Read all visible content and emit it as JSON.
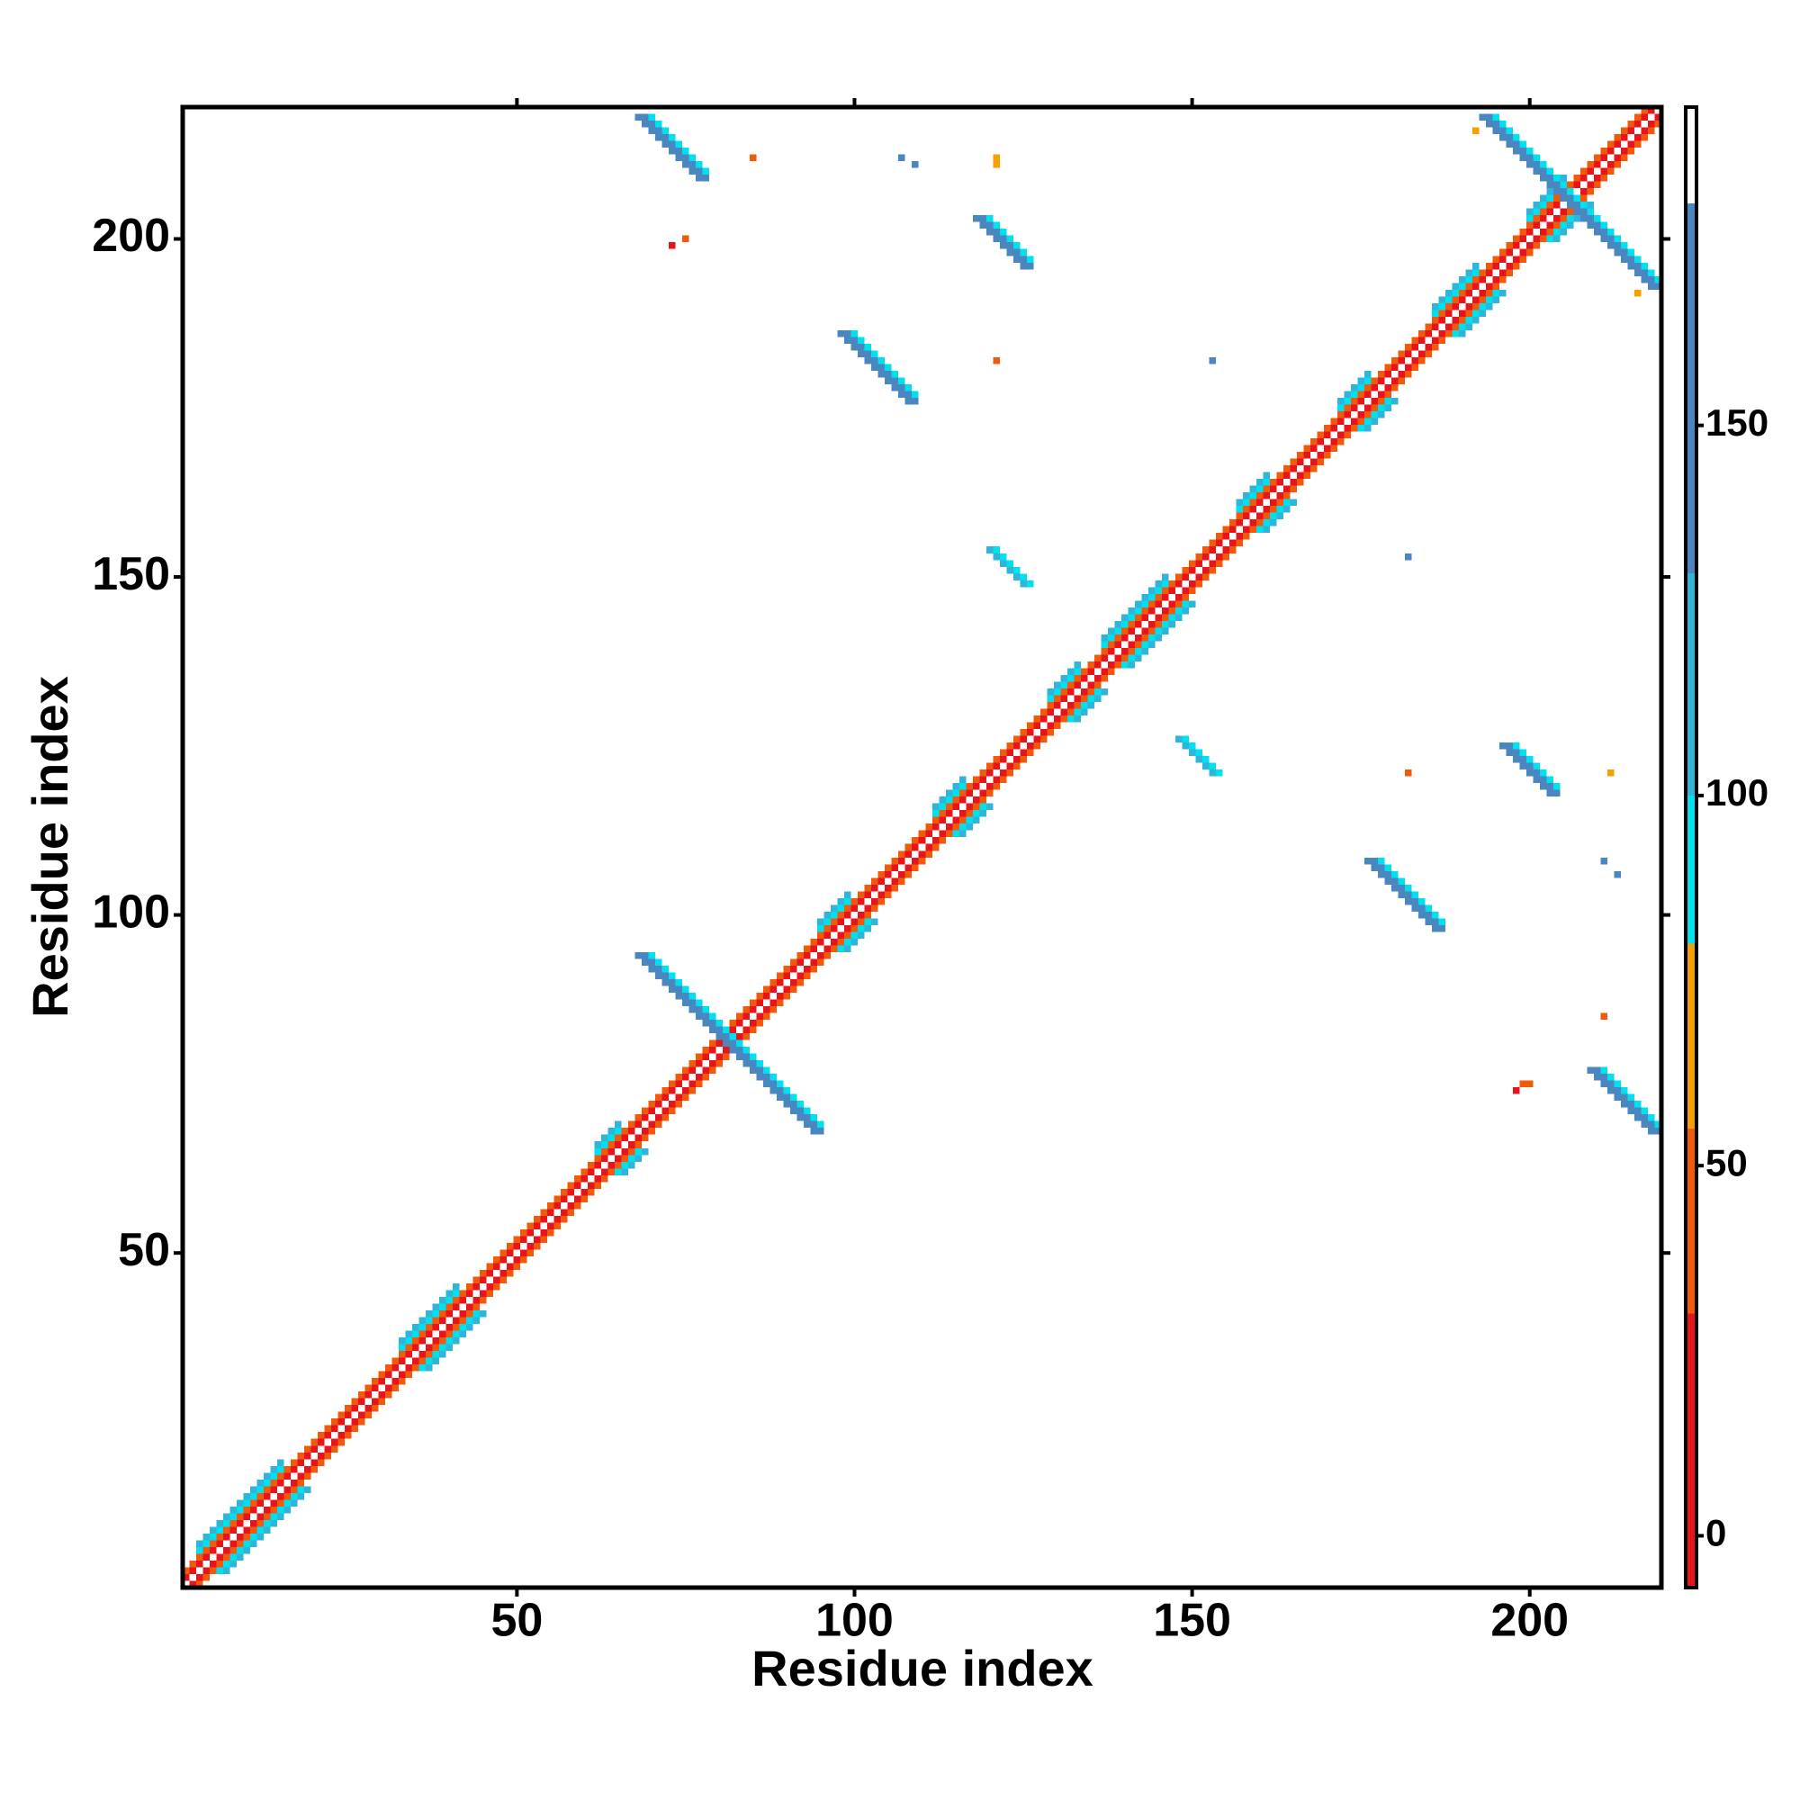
{
  "chart_data": {
    "type": "heatmap",
    "xlabel": "Residue index",
    "ylabel": "Residue index",
    "xlim": [
      0.5,
      219.5
    ],
    "ylim": [
      0.5,
      219.5
    ],
    "xticks": [
      50,
      100,
      150,
      200
    ],
    "yticks": [
      50,
      100,
      150,
      200
    ],
    "colorbar": {
      "clim": [
        -7,
        193
      ],
      "ticks": [
        0,
        50,
        100,
        150
      ],
      "bins": [
        -7,
        30,
        55,
        80,
        100,
        130,
        180,
        193
      ],
      "colors": [
        "#e8141c",
        "#f05a0a",
        "#f5a000",
        "#00e1f0",
        "#30b4d8",
        "#4a86c0",
        "#ffffff"
      ]
    },
    "segments": [
      [
        1,
        2,
        1,
        1,
        218,
        12
      ],
      [
        2,
        1,
        1,
        1,
        218,
        12
      ],
      [
        1,
        3,
        1,
        1,
        217,
        45
      ],
      [
        3,
        1,
        1,
        1,
        217,
        45
      ],
      [
        3,
        6,
        1,
        1,
        13,
        90
      ],
      [
        6,
        3,
        1,
        1,
        13,
        90
      ],
      [
        3,
        7,
        1,
        1,
        13,
        110
      ],
      [
        7,
        3,
        1,
        1,
        13,
        110
      ],
      [
        33,
        36,
        1,
        1,
        9,
        90
      ],
      [
        36,
        33,
        1,
        1,
        9,
        90
      ],
      [
        33,
        37,
        1,
        1,
        9,
        110
      ],
      [
        37,
        33,
        1,
        1,
        9,
        110
      ],
      [
        62,
        65,
        1,
        1,
        4,
        90
      ],
      [
        65,
        62,
        1,
        1,
        4,
        90
      ],
      [
        62,
        66,
        1,
        1,
        4,
        110
      ],
      [
        66,
        62,
        1,
        1,
        4,
        110
      ],
      [
        95,
        98,
        1,
        1,
        5,
        90
      ],
      [
        98,
        95,
        1,
        1,
        5,
        90
      ],
      [
        95,
        99,
        1,
        1,
        5,
        110
      ],
      [
        99,
        95,
        1,
        1,
        5,
        110
      ],
      [
        112,
        115,
        1,
        1,
        5,
        90
      ],
      [
        115,
        112,
        1,
        1,
        5,
        90
      ],
      [
        112,
        116,
        1,
        1,
        5,
        110
      ],
      [
        116,
        112,
        1,
        1,
        5,
        110
      ],
      [
        129,
        132,
        1,
        1,
        5,
        90
      ],
      [
        132,
        129,
        1,
        1,
        5,
        90
      ],
      [
        129,
        133,
        1,
        1,
        5,
        110
      ],
      [
        133,
        129,
        1,
        1,
        5,
        110
      ],
      [
        137,
        140,
        1,
        1,
        10,
        90
      ],
      [
        140,
        137,
        1,
        1,
        10,
        90
      ],
      [
        137,
        141,
        1,
        1,
        10,
        110
      ],
      [
        141,
        137,
        1,
        1,
        10,
        110
      ],
      [
        157,
        160,
        1,
        1,
        5,
        90
      ],
      [
        160,
        157,
        1,
        1,
        5,
        90
      ],
      [
        157,
        161,
        1,
        1,
        5,
        110
      ],
      [
        161,
        157,
        1,
        1,
        5,
        110
      ],
      [
        172,
        175,
        1,
        1,
        5,
        90
      ],
      [
        175,
        172,
        1,
        1,
        5,
        90
      ],
      [
        172,
        176,
        1,
        1,
        5,
        110
      ],
      [
        176,
        172,
        1,
        1,
        5,
        110
      ],
      [
        186,
        189,
        1,
        1,
        7,
        90
      ],
      [
        189,
        186,
        1,
        1,
        7,
        90
      ],
      [
        186,
        190,
        1,
        1,
        7,
        110
      ],
      [
        190,
        186,
        1,
        1,
        7,
        110
      ],
      [
        200,
        203,
        1,
        1,
        6,
        90
      ],
      [
        203,
        200,
        1,
        1,
        6,
        90
      ],
      [
        200,
        204,
        1,
        1,
        6,
        110
      ],
      [
        204,
        200,
        1,
        1,
        6,
        110
      ],
      [
        68,
        218,
        1,
        -1,
        10,
        150
      ],
      [
        69,
        218,
        1,
        -1,
        10,
        150
      ],
      [
        70,
        218,
        1,
        -1,
        9,
        95
      ],
      [
        118,
        203,
        1,
        -1,
        8,
        150
      ],
      [
        119,
        203,
        1,
        -1,
        8,
        150
      ],
      [
        120,
        203,
        1,
        -1,
        7,
        95
      ],
      [
        98,
        186,
        1,
        -1,
        11,
        150
      ],
      [
        99,
        186,
        1,
        -1,
        11,
        150
      ],
      [
        100,
        186,
        1,
        -1,
        10,
        95
      ],
      [
        120,
        154,
        1,
        -1,
        6,
        110
      ],
      [
        121,
        154,
        1,
        -1,
        6,
        95
      ],
      [
        68,
        94,
        1,
        -1,
        27,
        150
      ],
      [
        69,
        94,
        1,
        -1,
        27,
        150
      ],
      [
        70,
        94,
        1,
        -1,
        26,
        95
      ],
      [
        193,
        218,
        1,
        -1,
        26,
        150
      ],
      [
        194,
        218,
        1,
        -1,
        26,
        150
      ],
      [
        195,
        218,
        1,
        -1,
        25,
        95
      ],
      [
        148,
        126,
        1,
        -1,
        6,
        110
      ],
      [
        149,
        126,
        1,
        -1,
        6,
        95
      ],
      [
        196,
        125,
        1,
        -1,
        8,
        150
      ],
      [
        197,
        125,
        1,
        -1,
        8,
        150
      ],
      [
        198,
        125,
        1,
        -1,
        7,
        95
      ],
      [
        176,
        108,
        1,
        -1,
        11,
        150
      ],
      [
        177,
        108,
        1,
        -1,
        11,
        150
      ],
      [
        178,
        108,
        1,
        -1,
        10,
        95
      ],
      [
        209,
        77,
        1,
        -1,
        10,
        150
      ],
      [
        210,
        77,
        1,
        -1,
        10,
        150
      ],
      [
        211,
        77,
        1,
        -1,
        9,
        95
      ],
      [
        85,
        212,
        1,
        1,
        1,
        45
      ],
      [
        121,
        212,
        1,
        1,
        1,
        65
      ],
      [
        121,
        211,
        1,
        1,
        1,
        65
      ],
      [
        73,
        199,
        1,
        1,
        1,
        12
      ],
      [
        75,
        200,
        1,
        1,
        1,
        45
      ],
      [
        107,
        212,
        1,
        1,
        1,
        150
      ],
      [
        109,
        211,
        1,
        1,
        1,
        150
      ],
      [
        121,
        182,
        1,
        1,
        1,
        45
      ],
      [
        153,
        182,
        1,
        1,
        1,
        150
      ],
      [
        182,
        153,
        1,
        1,
        1,
        150
      ],
      [
        182,
        121,
        1,
        1,
        1,
        45
      ],
      [
        212,
        121,
        1,
        1,
        1,
        65
      ],
      [
        211,
        108,
        1,
        1,
        1,
        150
      ],
      [
        213,
        106,
        1,
        1,
        1,
        150
      ],
      [
        211,
        85,
        1,
        1,
        1,
        45
      ],
      [
        200,
        75,
        1,
        1,
        1,
        45
      ],
      [
        199,
        75,
        1,
        1,
        1,
        45
      ],
      [
        198,
        74,
        1,
        1,
        1,
        12
      ],
      [
        216,
        192,
        1,
        1,
        1,
        65
      ],
      [
        192,
        216,
        1,
        1,
        1,
        65
      ]
    ]
  }
}
